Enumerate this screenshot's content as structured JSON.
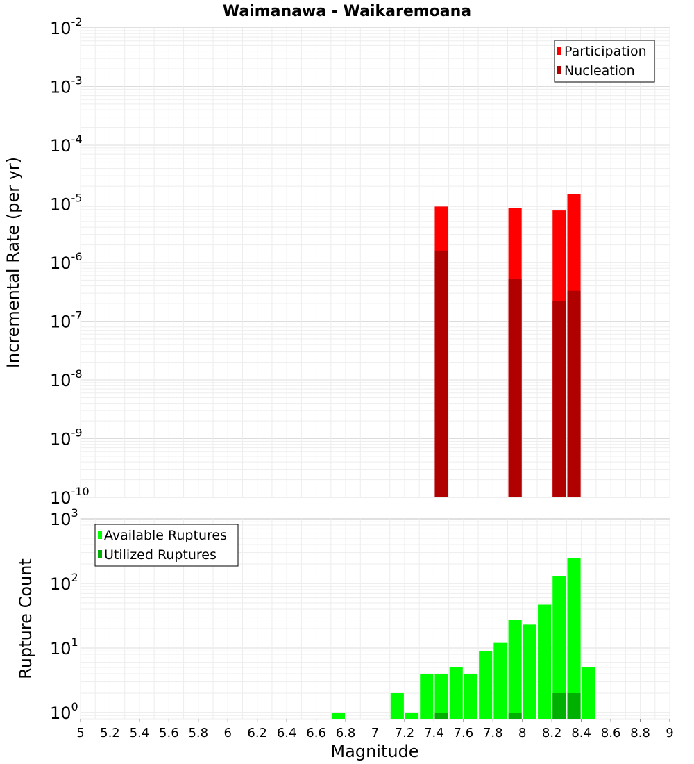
{
  "title": "Waimanawa - Waikaremoana",
  "chart_data": [
    {
      "type": "bar",
      "ylabel": "Incremental Rate (per yr)",
      "yscale": "log",
      "ylim": [
        1e-10,
        0.01
      ],
      "xlim": [
        5.0,
        9.0
      ],
      "y_tick_exponents": [
        "-2",
        "-3",
        "-4",
        "-5",
        "-6",
        "-7",
        "-8",
        "-9",
        "-10"
      ],
      "legend": {
        "position": "top-right",
        "entries": [
          {
            "label": "Participation",
            "color": "#ff0000"
          },
          {
            "label": "Nucleation",
            "color": "#b00000"
          }
        ]
      },
      "series": [
        {
          "name": "Participation",
          "color": "#ff0000",
          "x": [
            7.45,
            7.95,
            8.25,
            8.35
          ],
          "values": [
            9e-06,
            8.6e-06,
            7.7e-06,
            1.45e-05
          ]
        },
        {
          "name": "Nucleation",
          "color": "#b00000",
          "x": [
            7.45,
            7.95,
            8.25,
            8.35
          ],
          "values": [
            1.6e-06,
            5.3e-07,
            2.2e-07,
            3.3e-07
          ]
        }
      ],
      "grid": true
    },
    {
      "type": "bar",
      "xlabel": "Magnitude",
      "ylabel": "Rupture Count",
      "yscale": "log",
      "ylim": [
        0.8,
        1000
      ],
      "xlim": [
        5.0,
        9.0
      ],
      "y_tick_exponents": [
        "3",
        "2",
        "1",
        "0"
      ],
      "x_ticks": [
        "5",
        "5.2",
        "5.4",
        "5.6",
        "5.8",
        "6",
        "6.2",
        "6.4",
        "6.6",
        "6.8",
        "7",
        "7.2",
        "7.4",
        "7.6",
        "7.8",
        "8",
        "8.2",
        "8.4",
        "8.6",
        "8.8",
        "9"
      ],
      "legend": {
        "position": "top-left",
        "entries": [
          {
            "label": "Available Ruptures",
            "color": "#00ff00"
          },
          {
            "label": "Utilized Ruptures",
            "color": "#00b000"
          }
        ]
      },
      "series": [
        {
          "name": "Available Ruptures",
          "color": "#00ff00",
          "x": [
            6.75,
            7.15,
            7.25,
            7.35,
            7.45,
            7.55,
            7.65,
            7.75,
            7.85,
            7.95,
            8.05,
            8.15,
            8.25,
            8.35,
            8.45
          ],
          "values": [
            1,
            2,
            1,
            4,
            4,
            5,
            4,
            9,
            12,
            27,
            23,
            47,
            130,
            250,
            5
          ]
        },
        {
          "name": "Utilized Ruptures",
          "color": "#00b000",
          "x": [
            7.45,
            7.95,
            8.25,
            8.35
          ],
          "values": [
            1,
            1,
            2,
            2
          ]
        }
      ],
      "grid": true
    }
  ]
}
